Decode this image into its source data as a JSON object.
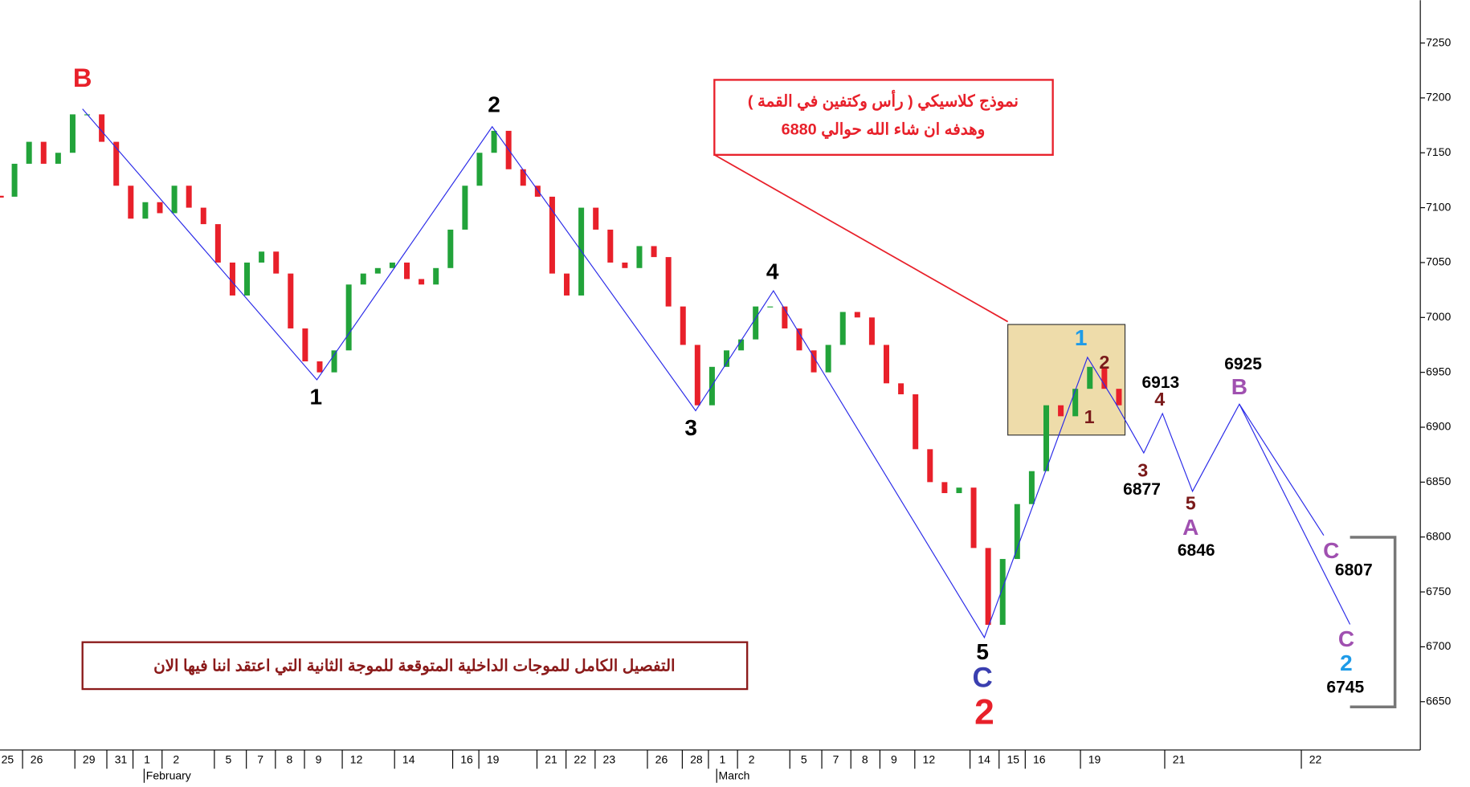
{
  "chart_data": {
    "type": "candlestick",
    "x": [
      -0.26,
      0.24,
      0.74,
      1.24,
      1.74,
      2.24,
      2.74,
      3.24,
      3.74,
      4.24,
      4.74,
      5.24,
      5.74,
      6.24,
      6.74,
      7.24,
      7.74,
      8.24,
      8.74,
      9.24,
      9.74,
      10.24,
      10.74,
      11.24,
      11.74,
      12.24,
      12.74,
      13.24,
      13.74,
      14.24,
      14.74,
      15.24,
      15.74,
      16.24,
      16.74,
      17.24,
      17.74,
      18.24,
      18.74,
      19.24,
      19.74,
      20.24,
      20.74,
      21.24,
      21.74,
      22.24,
      22.74,
      23.24,
      23.74,
      24.24,
      24.74,
      25.24,
      25.74,
      26.24,
      26.74,
      27.24,
      27.74,
      28.24,
      28.74,
      29.24,
      29.74,
      30.24,
      30.74,
      31.24,
      31.74,
      32.24,
      32.74,
      33.24,
      33.74,
      34.24,
      34.74,
      35.24,
      35.74,
      36.24,
      36.74,
      37.24,
      37.74,
      38.24
    ],
    "close": [
      7110,
      7140,
      7160,
      7140,
      7150,
      7185,
      7185,
      7160,
      7120,
      7090,
      7105,
      7095,
      7120,
      7100,
      7085,
      7050,
      7020,
      7050,
      7060,
      7040,
      6990,
      6960,
      6950,
      6970,
      7030,
      7040,
      7045,
      7050,
      7035,
      7030,
      7045,
      7080,
      7120,
      7150,
      7170,
      7135,
      7120,
      7110,
      7040,
      7020,
      7100,
      7080,
      7050,
      7045,
      7065,
      7055,
      7010,
      6975,
      6920,
      6955,
      6970,
      6980,
      7010,
      7010,
      6990,
      6970,
      6950,
      6975,
      7005,
      7000,
      6975,
      6940,
      6930,
      6880,
      6850,
      6840,
      6845,
      6790,
      6720,
      6780,
      6830,
      6860,
      6920,
      6910,
      6935,
      6955,
      6935,
      6920
    ],
    "up_color": "#22a33a",
    "down_color": "#e8202a",
    "xlim": [
      -0.26,
      48.61
    ],
    "ylim": [
      6606,
      7289
    ],
    "yticks": [
      6650,
      6700,
      6750,
      6800,
      6850,
      6900,
      6950,
      7000,
      7050,
      7100,
      7150,
      7200,
      7250
    ],
    "xticks": [
      {
        "value": 0,
        "label": "25"
      },
      {
        "value": 1,
        "label": "26"
      },
      {
        "value": 2.8,
        "label": "29"
      },
      {
        "value": 3.9,
        "label": "31"
      },
      {
        "value": 4.8,
        "label": "1"
      },
      {
        "value": 5.8,
        "label": "2"
      },
      {
        "value": 7.6,
        "label": "5"
      },
      {
        "value": 8.7,
        "label": "7"
      },
      {
        "value": 9.7,
        "label": "8"
      },
      {
        "value": 10.7,
        "label": "9"
      },
      {
        "value": 12,
        "label": "12"
      },
      {
        "value": 13.8,
        "label": "14"
      },
      {
        "value": 15.8,
        "label": "16"
      },
      {
        "value": 16.7,
        "label": "19"
      },
      {
        "value": 18.7,
        "label": "21"
      },
      {
        "value": 19.7,
        "label": "22"
      },
      {
        "value": 20.7,
        "label": "23"
      },
      {
        "value": 22.5,
        "label": "26"
      },
      {
        "value": 23.7,
        "label": "28"
      },
      {
        "value": 24.6,
        "label": "1"
      },
      {
        "value": 25.6,
        "label": "2"
      },
      {
        "value": 27.4,
        "label": "5"
      },
      {
        "value": 28.5,
        "label": "7"
      },
      {
        "value": 29.5,
        "label": "8"
      },
      {
        "value": 30.5,
        "label": "9"
      },
      {
        "value": 31.7,
        "label": "12"
      },
      {
        "value": 33.6,
        "label": "14"
      },
      {
        "value": 34.6,
        "label": "15"
      },
      {
        "value": 35.5,
        "label": "16"
      },
      {
        "value": 37.4,
        "label": "19"
      },
      {
        "value": 40.3,
        "label": "21"
      },
      {
        "value": 45,
        "label": "22"
      }
    ],
    "months": [
      {
        "value": 4.7,
        "label": "February"
      },
      {
        "value": 24.4,
        "label": "March"
      }
    ],
    "note_top": [
      "نموذج كلاسيكي ( رأس وكتفين في القمة )",
      "وهدفه ان شاء الله حوالي 6880"
    ],
    "note_bottom": "التفصيل الكامل للموجات الداخلية المتوقعة للموجة الثانية التي اعتقد اننا فيها الان",
    "wave_labels": [
      {
        "text": "B",
        "color": "#e8202a"
      },
      {
        "text": "2",
        "color": "#000000"
      },
      {
        "text": "1",
        "color": "#000000"
      },
      {
        "text": "3",
        "color": "#000000"
      },
      {
        "text": "4",
        "color": "#000000"
      },
      {
        "text": "5",
        "color": "#000000"
      },
      {
        "text": "C",
        "color": "#3a3fb0"
      },
      {
        "text": "2",
        "color": "#e8202a"
      },
      {
        "text": "1",
        "color": "#1e9be8"
      },
      {
        "text": "2",
        "color": "#7a1a1a"
      },
      {
        "text": "1",
        "color": "#7a1a1a"
      },
      {
        "text": "6913",
        "color": "#000000"
      },
      {
        "text": "4",
        "color": "#7a1a1a"
      },
      {
        "text": "3",
        "color": "#7a1a1a"
      },
      {
        "text": "6877",
        "color": "#000000"
      },
      {
        "text": "5",
        "color": "#7a1a1a"
      },
      {
        "text": "A",
        "color": "#a050b0"
      },
      {
        "text": "6846",
        "color": "#000000"
      },
      {
        "text": "6925",
        "color": "#000000"
      },
      {
        "text": "B",
        "color": "#a050b0"
      },
      {
        "text": "C",
        "color": "#a050b0"
      },
      {
        "text": "6807",
        "color": "#000000"
      },
      {
        "text": "C",
        "color": "#a050b0"
      },
      {
        "text": "2",
        "color": "#1e9be8"
      },
      {
        "text": "6745",
        "color": "#000000"
      }
    ]
  }
}
